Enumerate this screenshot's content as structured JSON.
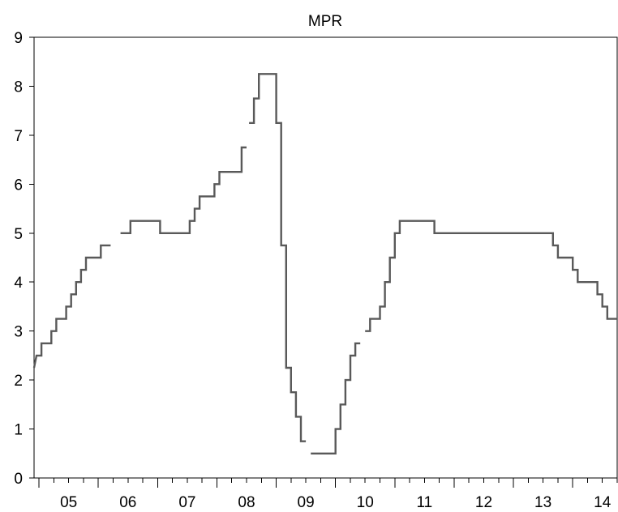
{
  "chart_data": {
    "type": "line",
    "title": "MPR",
    "xlabel": "",
    "ylabel": "",
    "ylim": [
      0,
      9
    ],
    "yticks": [
      "0",
      "1",
      "2",
      "3",
      "4",
      "5",
      "6",
      "7",
      "8",
      "9"
    ],
    "xlim": [
      2004.9167,
      2014.75
    ],
    "year_labels": [
      {
        "label": "05",
        "year": 2005
      },
      {
        "label": "06",
        "year": 2006
      },
      {
        "label": "07",
        "year": 2007
      },
      {
        "label": "08",
        "year": 2008
      },
      {
        "label": "09",
        "year": 2009
      },
      {
        "label": "10",
        "year": 2010
      },
      {
        "label": "11",
        "year": 2011
      },
      {
        "label": "12",
        "year": 2012
      },
      {
        "label": "13",
        "year": 2013
      },
      {
        "label": "14",
        "year": 2014
      }
    ],
    "grid": false,
    "series": [
      {
        "color": "#595959",
        "segments": [
          [
            [
              2004.9167,
              2.25
            ],
            [
              2004.9583,
              2.5
            ],
            [
              2005.0417,
              2.5
            ],
            [
              2005.0417,
              2.75
            ],
            [
              2005.2083,
              2.75
            ],
            [
              2005.2083,
              3.0
            ],
            [
              2005.2917,
              3.0
            ],
            [
              2005.2917,
              3.25
            ],
            [
              2005.4583,
              3.25
            ],
            [
              2005.4583,
              3.5
            ],
            [
              2005.5417,
              3.5
            ],
            [
              2005.5417,
              3.75
            ],
            [
              2005.625,
              3.75
            ],
            [
              2005.625,
              4.0
            ],
            [
              2005.7083,
              4.0
            ],
            [
              2005.7083,
              4.25
            ],
            [
              2005.7917,
              4.25
            ],
            [
              2005.7917,
              4.5
            ],
            [
              2006.0417,
              4.5
            ],
            [
              2006.0417,
              4.75
            ],
            [
              2006.2083,
              4.75
            ]
          ],
          [
            [
              2006.375,
              5.0
            ],
            [
              2006.5417,
              5.0
            ],
            [
              2006.5417,
              5.25
            ],
            [
              2007.0417,
              5.25
            ],
            [
              2007.0417,
              5.0
            ],
            [
              2007.5417,
              5.0
            ],
            [
              2007.5417,
              5.25
            ],
            [
              2007.625,
              5.25
            ],
            [
              2007.625,
              5.5
            ],
            [
              2007.7083,
              5.5
            ],
            [
              2007.7083,
              5.75
            ],
            [
              2007.9583,
              5.75
            ],
            [
              2007.9583,
              6.0
            ],
            [
              2008.0417,
              6.0
            ],
            [
              2008.0417,
              6.25
            ],
            [
              2008.4167,
              6.25
            ],
            [
              2008.4167,
              6.75
            ],
            [
              2008.5,
              6.75
            ]
          ],
          [
            [
              2008.5417,
              7.25
            ],
            [
              2008.625,
              7.25
            ],
            [
              2008.625,
              7.75
            ],
            [
              2008.7083,
              7.75
            ],
            [
              2008.7083,
              8.25
            ],
            [
              2009.0,
              8.25
            ],
            [
              2009.0,
              7.25
            ],
            [
              2009.0833,
              7.25
            ],
            [
              2009.0833,
              4.75
            ],
            [
              2009.1667,
              4.75
            ],
            [
              2009.1667,
              2.25
            ],
            [
              2009.25,
              2.25
            ],
            [
              2009.25,
              1.75
            ],
            [
              2009.3333,
              1.75
            ],
            [
              2009.3333,
              1.25
            ],
            [
              2009.4167,
              1.25
            ],
            [
              2009.4167,
              0.75
            ],
            [
              2009.5,
              0.75
            ]
          ],
          [
            [
              2009.5833,
              0.5
            ],
            [
              2010.0,
              0.5
            ],
            [
              2010.0,
              1.0
            ],
            [
              2010.0833,
              1.0
            ],
            [
              2010.0833,
              1.5
            ],
            [
              2010.1667,
              1.5
            ],
            [
              2010.1667,
              2.0
            ],
            [
              2010.25,
              2.0
            ],
            [
              2010.25,
              2.5
            ],
            [
              2010.3333,
              2.5
            ],
            [
              2010.3333,
              2.75
            ],
            [
              2010.4167,
              2.75
            ]
          ],
          [
            [
              2010.5,
              3.0
            ],
            [
              2010.5833,
              3.0
            ],
            [
              2010.5833,
              3.25
            ],
            [
              2010.75,
              3.25
            ],
            [
              2010.75,
              3.5
            ],
            [
              2010.8333,
              3.5
            ],
            [
              2010.8333,
              4.0
            ],
            [
              2010.9167,
              4.0
            ],
            [
              2010.9167,
              4.5
            ],
            [
              2011.0,
              4.5
            ],
            [
              2011.0,
              5.0
            ],
            [
              2011.0833,
              5.0
            ],
            [
              2011.0833,
              5.25
            ],
            [
              2011.6667,
              5.25
            ],
            [
              2011.6667,
              5.0
            ],
            [
              2013.6667,
              5.0
            ],
            [
              2013.6667,
              4.75
            ],
            [
              2013.75,
              4.75
            ],
            [
              2013.75,
              4.5
            ],
            [
              2014.0,
              4.5
            ],
            [
              2014.0,
              4.25
            ],
            [
              2014.0833,
              4.25
            ],
            [
              2014.0833,
              4.0
            ],
            [
              2014.4167,
              4.0
            ],
            [
              2014.4167,
              3.75
            ],
            [
              2014.5,
              3.75
            ],
            [
              2014.5,
              3.5
            ],
            [
              2014.5833,
              3.5
            ],
            [
              2014.5833,
              3.25
            ],
            [
              2014.75,
              3.25
            ]
          ]
        ]
      }
    ]
  }
}
